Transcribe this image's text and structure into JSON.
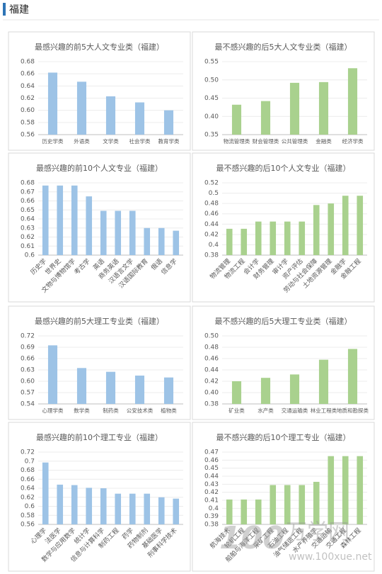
{
  "header": {
    "title": "福建"
  },
  "watermark": {
    "logo": "100",
    "name": "万学网",
    "url": "www.100xue.net"
  },
  "chart_data": [
    {
      "type": "bar",
      "title": "最感兴趣的前5大人文专业类（福建）",
      "color": "#9dc3e6",
      "grid": true,
      "categories": [
        "历史学类",
        "外语类",
        "文学类",
        "社会学类",
        "教育学类"
      ],
      "values": [
        0.662,
        0.647,
        0.623,
        0.613,
        0.6
      ],
      "ylim": [
        0.56,
        0.68
      ],
      "yticks": [
        0.56,
        0.58,
        {
          "value": 0.6,
          "label": "0.60"
        },
        0.62,
        0.64,
        0.66,
        0.68
      ]
    },
    {
      "type": "bar",
      "title": "最不感兴趣的后5大人文专业类（福建）",
      "color": "#a9d18e",
      "grid": true,
      "categories": [
        "物流管理类",
        "财会管理类",
        "公共管理类",
        "金融类",
        "经济学类"
      ],
      "values": [
        0.432,
        0.442,
        0.492,
        0.494,
        0.532
      ],
      "ylim": [
        0.35,
        0.55
      ],
      "yticks": [
        0.35,
        {
          "value": 0.4,
          "label": "0.40"
        },
        0.45,
        {
          "value": 0.5,
          "label": "0.50"
        },
        0.55
      ]
    },
    {
      "type": "bar",
      "title": "最感兴趣的前10个人文专业（福建）",
      "color": "#9dc3e6",
      "grid": true,
      "categories": [
        "历史学",
        "世界史",
        "文物与博物馆学",
        "考古学",
        "英语",
        "商务英语",
        "汉语言文学",
        "汉语国际教育",
        "俄语",
        "信息学"
      ],
      "values": [
        0.677,
        0.677,
        0.677,
        0.665,
        0.649,
        0.649,
        0.649,
        0.63,
        0.63,
        0.627
      ],
      "ylim": [
        0.6,
        0.68
      ],
      "yticks": [
        0.6,
        0.61,
        0.62,
        0.63,
        0.64,
        0.65,
        0.66,
        0.67,
        0.68
      ]
    },
    {
      "type": "bar",
      "title": "最不感兴趣的后10个人文专业（福建）",
      "color": "#a9d18e",
      "grid": true,
      "categories": [
        "物流管理",
        "物流工程",
        "会计学",
        "财务管理",
        "审计学",
        "资产评估",
        "劳动与社会保障",
        "土地资源管理",
        "金融学",
        "金融工程"
      ],
      "values": [
        0.431,
        0.431,
        0.445,
        0.445,
        0.445,
        0.445,
        0.477,
        0.48,
        0.495,
        0.495
      ],
      "ylim": [
        0.38,
        0.52
      ],
      "yticks": [
        0.38,
        0.4,
        0.42,
        0.44,
        0.46,
        0.48,
        0.5,
        0.52
      ]
    },
    {
      "type": "bar",
      "title": "最感兴趣的前5大理工专业类（福建）",
      "color": "#9dc3e6",
      "grid": true,
      "categories": [
        "心理学类",
        "数学类",
        "制药类",
        "公安技术类",
        "植物类"
      ],
      "values": [
        0.695,
        0.635,
        0.625,
        0.615,
        0.61
      ],
      "ylim": [
        0.54,
        0.72
      ],
      "yticks": [
        0.54,
        0.57,
        {
          "value": 0.6,
          "label": "0.60"
        },
        0.63,
        0.66,
        0.69,
        0.72
      ]
    },
    {
      "type": "bar",
      "title": "最不感兴趣的后5大理工专业类（福建）",
      "color": "#a9d18e",
      "grid": true,
      "categories": [
        "矿业类",
        "水产类",
        "交通运输类",
        "林业工程类",
        "地质和勘探类"
      ],
      "values": [
        0.42,
        0.426,
        0.432,
        0.458,
        0.477
      ],
      "ylim": [
        0.38,
        0.5
      ],
      "yticks": [
        0.38,
        {
          "value": 0.4,
          "label": "0.40"
        },
        0.42,
        0.44,
        0.46,
        0.48,
        {
          "value": 0.5,
          "label": "0.50"
        }
      ]
    },
    {
      "type": "bar",
      "title": "最感兴趣的前10个理工专业（福建）",
      "color": "#9dc3e6",
      "grid": true,
      "categories": [
        "心理学",
        "法医学",
        "数学与应用数学",
        "统计学",
        "信息与计算科学",
        "制药工程",
        "药学",
        "药物制剂",
        "基础医学",
        "刑事科学技术"
      ],
      "values": [
        0.697,
        0.648,
        0.647,
        0.641,
        0.64,
        0.628,
        0.628,
        0.628,
        0.62,
        0.617
      ],
      "ylim": [
        0.56,
        0.72
      ],
      "yticks": [
        0.56,
        0.58,
        0.6,
        0.62,
        0.64,
        0.66,
        0.68,
        0.7,
        0.72
      ]
    },
    {
      "type": "bar",
      "title": "最不感兴趣的后10个理工专业（福建）",
      "color": "#a9d18e",
      "grid": true,
      "categories": [
        "航海技术",
        "轮机工程",
        "船舶与海洋工程",
        "采矿工程",
        "石油工程",
        "油气储运工程",
        "水产养殖学",
        "交通运输",
        "交通工程",
        "森林工程"
      ],
      "values": [
        0.411,
        0.411,
        0.411,
        0.429,
        0.429,
        0.429,
        0.433,
        0.465,
        0.465,
        0.465
      ],
      "ylim": [
        0.38,
        0.47
      ],
      "yticks": [
        0.38,
        0.39,
        0.4,
        0.41,
        0.42,
        0.43,
        0.44,
        0.45,
        0.46,
        0.47
      ]
    }
  ]
}
